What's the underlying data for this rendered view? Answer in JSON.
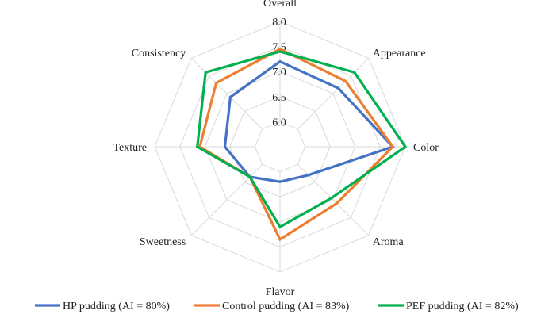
{
  "chart_data": {
    "type": "radar",
    "axes": [
      "Overall",
      "Appearance",
      "Color",
      "Aroma",
      "Flavor",
      "Sweetness",
      "Texture",
      "Consistency"
    ],
    "range": [
      5.5,
      8.0
    ],
    "ticks": [
      "6.0",
      "6.5",
      "7.0",
      "7.5",
      "8.0"
    ],
    "tick_values": [
      6.0,
      6.5,
      7.0,
      7.5,
      8.0
    ],
    "grid": true,
    "legend_position": "bottom",
    "series": [
      {
        "name": "HP pudding (AI = 80%)",
        "color": "#4472c4",
        "values": [
          7.2,
          7.15,
          7.75,
          6.3,
          6.2,
          6.35,
          6.6,
          6.9
        ]
      },
      {
        "name": "Control pudding (AI = 83%)",
        "color": "#ed7d31",
        "values": [
          7.45,
          7.35,
          7.75,
          7.1,
          7.35,
          6.35,
          7.1,
          7.3
        ]
      },
      {
        "name": "PEF pudding (AI = 82%)",
        "color": "#00b050",
        "values": [
          7.4,
          7.6,
          8.0,
          6.95,
          7.1,
          6.35,
          7.15,
          7.6
        ]
      }
    ]
  }
}
